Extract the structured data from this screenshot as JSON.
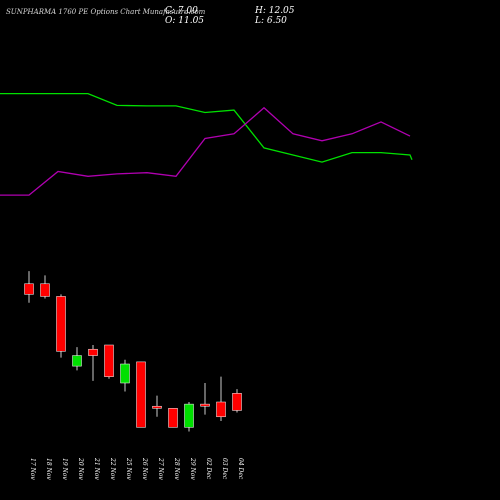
{
  "header": {
    "title": "SUNPHARMA 1760 PE Options Chart Munafasutra.com",
    "close": "C: 7.00",
    "high": "H: 12.05",
    "open": "O: 11.05",
    "low": "L: 6.50"
  },
  "chart_data": {
    "type": "candlestick",
    "categories": [
      "17 Nov",
      "18 Nov",
      "19 Nov",
      "20 Nov",
      "21 Nov",
      "22 Nov",
      "25 Nov",
      "26 Nov",
      "27 Nov",
      "28 Nov",
      "29 Nov",
      "02 Dec",
      "03 Dec",
      "04 Dec"
    ],
    "candles": [
      {
        "date": "17 Nov",
        "open": 37.0,
        "high": 40.0,
        "low": 32.5,
        "close": 34.5
      },
      {
        "date": "18 Nov",
        "open": 37.0,
        "high": 39.0,
        "low": 33.5,
        "close": 34.0
      },
      {
        "date": "19 Nov",
        "open": 34.0,
        "high": 34.5,
        "low": 19.5,
        "close": 21.0
      },
      {
        "date": "20 Nov",
        "open": 17.5,
        "high": 22.0,
        "low": 16.5,
        "close": 20.0
      },
      {
        "date": "21 Nov",
        "open": 21.5,
        "high": 22.5,
        "low": 14.0,
        "close": 20.0
      },
      {
        "date": "22 Nov",
        "open": 22.5,
        "high": 22.5,
        "low": 14.5,
        "close": 15.0
      },
      {
        "date": "25 Nov",
        "open": 13.5,
        "high": 19.0,
        "low": 11.5,
        "close": 18.0
      },
      {
        "date": "26 Nov",
        "open": 18.5,
        "high": 18.5,
        "low": 3.0,
        "close": 3.0
      },
      {
        "date": "27 Nov",
        "open": 8.0,
        "high": 10.5,
        "low": 5.5,
        "close": 7.5
      },
      {
        "date": "28 Nov",
        "open": 7.5,
        "high": 7.5,
        "low": 3.0,
        "close": 3.0
      },
      {
        "date": "29 Nov",
        "open": 3.0,
        "high": 9.0,
        "low": 2.0,
        "close": 8.5
      },
      {
        "date": "02 Dec",
        "open": 8.5,
        "high": 13.5,
        "low": 6.0,
        "close": 8.0
      },
      {
        "date": "03 Dec",
        "open": 9.0,
        "high": 15.0,
        "low": 4.5,
        "close": 5.5
      },
      {
        "date": "04 Dec",
        "open": 11.05,
        "high": 12.05,
        "low": 6.5,
        "close": 7.0
      }
    ],
    "line_series": [
      {
        "color": "#00e000",
        "values": [
          62,
          62,
          62,
          62,
          57,
          56.8,
          56.8,
          54,
          55,
          39,
          36,
          33,
          37,
          37,
          36,
          34
        ]
      },
      {
        "color": "#b000b0",
        "values": [
          19,
          19,
          29,
          27,
          28,
          28.5,
          27,
          43,
          45,
          56,
          45,
          42,
          45,
          50,
          44
        ]
      }
    ],
    "colors": {
      "background": "#000000",
      "up": "#00e000",
      "down": "#ff0000",
      "wick": "#ffffff",
      "green_line": "#00e000",
      "purple_line": "#b000b0"
    }
  }
}
